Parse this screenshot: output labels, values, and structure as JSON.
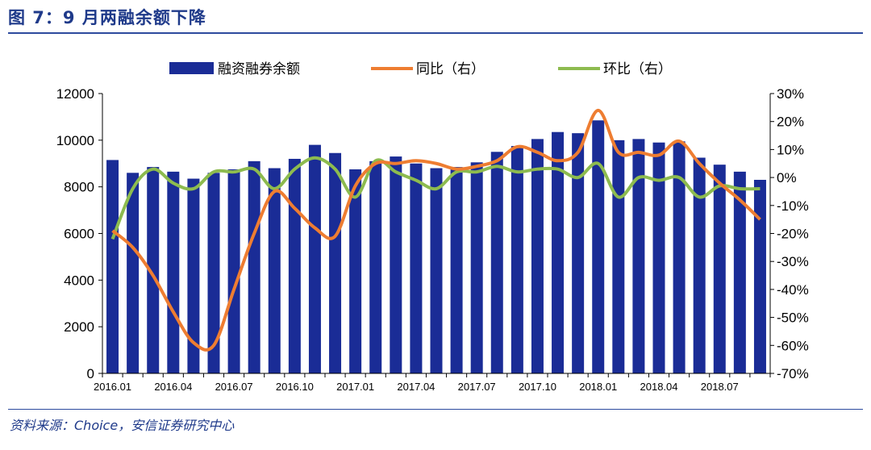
{
  "title": "图 7：9 月两融余额下降",
  "source": "资料来源：Choice，安信证券研究中心",
  "colors": {
    "bar": "#1A2C96",
    "yoy": "#EE7D31",
    "mom": "#8DBB4F",
    "accent": "#1F3A8A"
  },
  "chart_data": {
    "type": "bar",
    "categories": [
      "2016.01",
      "2016.02",
      "2016.03",
      "2016.04",
      "2016.05",
      "2016.06",
      "2016.07",
      "2016.08",
      "2016.09",
      "2016.10",
      "2016.11",
      "2016.12",
      "2017.01",
      "2017.02",
      "2017.03",
      "2017.04",
      "2017.05",
      "2017.06",
      "2017.07",
      "2017.08",
      "2017.09",
      "2017.10",
      "2017.11",
      "2017.12",
      "2018.01",
      "2018.02",
      "2018.03",
      "2018.04",
      "2018.05",
      "2018.06",
      "2018.07",
      "2018.08",
      "2018.09"
    ],
    "x_tick_labels": [
      "2016.01",
      "2016.04",
      "2016.07",
      "2016.10",
      "2017.01",
      "2017.04",
      "2017.07",
      "2017.10",
      "2018.01",
      "2018.04",
      "2018.07"
    ],
    "series": [
      {
        "name": "融资融券余额",
        "type": "bar",
        "axis": "left",
        "values": [
          9150,
          8600,
          8850,
          8650,
          8350,
          8600,
          8750,
          9100,
          8800,
          9200,
          9800,
          9450,
          8750,
          9100,
          9300,
          9000,
          8800,
          8850,
          9050,
          9500,
          9750,
          10050,
          10350,
          10300,
          10850,
          10000,
          10050,
          9900,
          9950,
          9250,
          8950,
          8650,
          8300
        ]
      },
      {
        "name": "同比（右）",
        "type": "line",
        "axis": "right",
        "values": [
          -19,
          -25,
          -35,
          -48,
          -59,
          -60,
          -40,
          -20,
          -5,
          -11,
          -18,
          -21,
          -3,
          5,
          5,
          6,
          5,
          3,
          4,
          6,
          11,
          9,
          6,
          9,
          24,
          9,
          9,
          8,
          13,
          5,
          -2,
          -8,
          -15
        ]
      },
      {
        "name": "环比（右）",
        "type": "line",
        "axis": "right",
        "values": [
          -22,
          -4,
          3,
          -2,
          -4,
          2,
          2,
          3,
          -4,
          3,
          7,
          3,
          -7,
          6,
          2,
          -1,
          -4,
          2,
          2,
          4,
          2,
          3,
          3,
          0,
          5,
          -7,
          0,
          -1,
          0,
          -7,
          -3,
          -4,
          -4
        ]
      }
    ],
    "ylim_left": [
      0,
      12000
    ],
    "yticks_left": [
      0,
      2000,
      4000,
      6000,
      8000,
      10000,
      12000
    ],
    "ylim_right": [
      -70,
      30
    ],
    "yticks_right": [
      "30%",
      "20%",
      "10%",
      "0%",
      "-10%",
      "-20%",
      "-30%",
      "-40%",
      "-50%",
      "-60%",
      "-70%"
    ],
    "legend": "top",
    "grid": false
  }
}
